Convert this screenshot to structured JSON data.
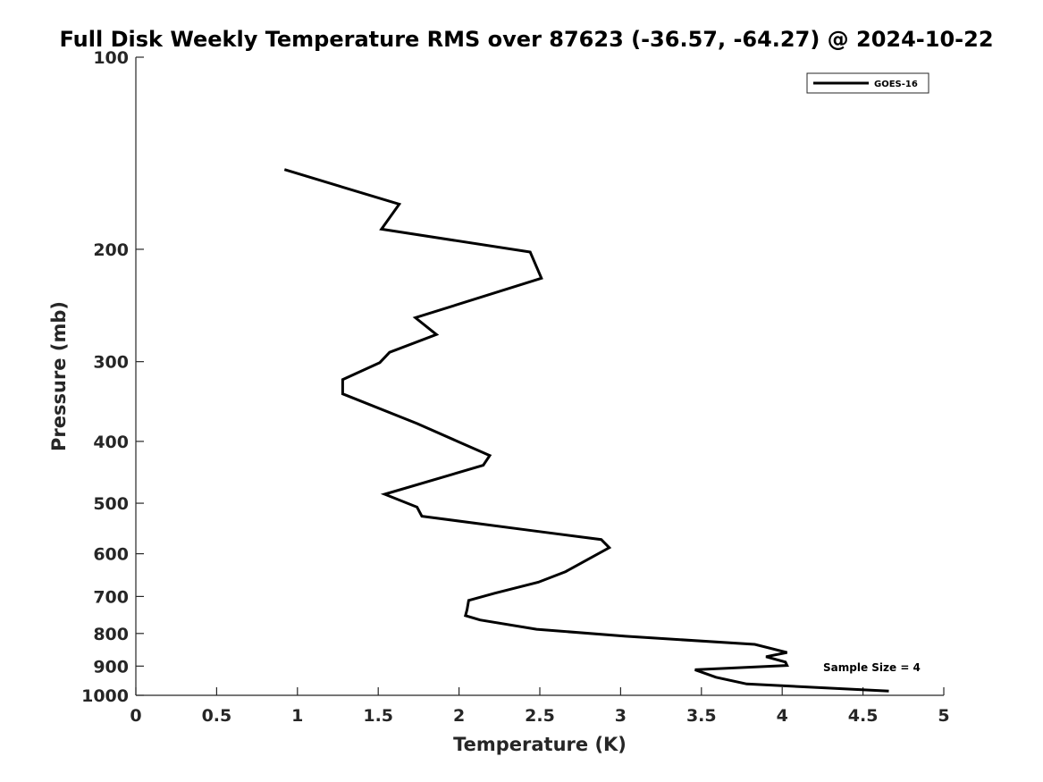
{
  "chart_data": {
    "type": "line",
    "title": "Full Disk Weekly Temperature RMS over 87623 (-36.57, -64.27) @ 2024-10-22",
    "xlabel": "Temperature (K)",
    "ylabel": "Pressure (mb)",
    "xlim": [
      0,
      5
    ],
    "ylim": [
      100,
      1000
    ],
    "y_scale": "log",
    "y_reversed": true,
    "x_ticks": [
      0,
      0.5,
      1,
      1.5,
      2,
      2.5,
      3,
      3.5,
      4,
      4.5,
      5
    ],
    "x_tick_labels": [
      "0",
      "0.5",
      "1",
      "1.5",
      "2",
      "2.5",
      "3",
      "3.5",
      "4",
      "4.5",
      "5"
    ],
    "y_ticks": [
      100,
      200,
      300,
      400,
      500,
      600,
      700,
      800,
      900,
      1000
    ],
    "y_tick_labels": [
      "100",
      "200",
      "300",
      "400",
      "500",
      "600",
      "700",
      "800",
      "900",
      "1000"
    ],
    "grid": false,
    "legend_position": "top-right",
    "annotation": "Sample Size = 4",
    "series": [
      {
        "name": "GOES-16",
        "color": "#000000",
        "points": [
          [
            0.92,
            150
          ],
          [
            1.63,
            170
          ],
          [
            1.52,
            186
          ],
          [
            2.44,
            202
          ],
          [
            2.51,
            222
          ],
          [
            1.73,
            256
          ],
          [
            1.86,
            272
          ],
          [
            1.57,
            290
          ],
          [
            1.51,
            301
          ],
          [
            1.28,
            320
          ],
          [
            1.28,
            337
          ],
          [
            1.74,
            375
          ],
          [
            2.0,
            401
          ],
          [
            2.19,
            421
          ],
          [
            2.15,
            436
          ],
          [
            1.54,
            484
          ],
          [
            1.74,
            507
          ],
          [
            1.77,
            524
          ],
          [
            2.45,
            552
          ],
          [
            2.88,
            570
          ],
          [
            2.93,
            587
          ],
          [
            2.8,
            612
          ],
          [
            2.66,
            640
          ],
          [
            2.49,
            665
          ],
          [
            2.22,
            692
          ],
          [
            2.06,
            710
          ],
          [
            2.05,
            734
          ],
          [
            2.04,
            750
          ],
          [
            2.13,
            762
          ],
          [
            2.48,
            788
          ],
          [
            3.03,
            808
          ],
          [
            3.83,
            832
          ],
          [
            4.03,
            857
          ],
          [
            3.9,
            870
          ],
          [
            4.02,
            887
          ],
          [
            4.03,
            898
          ],
          [
            3.46,
            912
          ],
          [
            3.59,
            937
          ],
          [
            3.78,
            960
          ],
          [
            4.66,
            985
          ]
        ]
      }
    ]
  }
}
